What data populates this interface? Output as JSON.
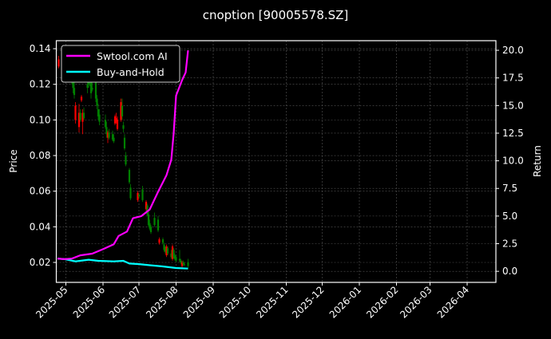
{
  "chart_data": {
    "type": "candlestick+line",
    "title": "cnoption [90005578.SZ]",
    "ylabel_left": "Price",
    "ylabel_right": "Return",
    "xlim": [
      "2025-04-23",
      "2026-04-25"
    ],
    "ylim_left": [
      0.0088,
      0.1445
    ],
    "ylim_right": [
      -1.0,
      20.87
    ],
    "x_ticks": [
      "2025-05",
      "2025-06",
      "2025-07",
      "2025-08",
      "2025-09",
      "2025-10",
      "2025-11",
      "2025-12",
      "2026-01",
      "2026-02",
      "2026-03",
      "2026-04"
    ],
    "x_tick_dates": [
      "2025-05-01",
      "2025-06-01",
      "2025-07-01",
      "2025-08-01",
      "2025-09-01",
      "2025-10-01",
      "2025-11-01",
      "2025-12-01",
      "2026-01-01",
      "2026-02-01",
      "2026-03-01",
      "2026-04-01"
    ],
    "y_ticks_left": [
      "0.02",
      "0.04",
      "0.06",
      "0.08",
      "0.10",
      "0.12",
      "0.14"
    ],
    "y_ticks_right": [
      "0.0",
      "2.5",
      "5.0",
      "7.5",
      "10.0",
      "12.5",
      "15.0",
      "17.5",
      "20.0"
    ],
    "grid": true,
    "legend_position": "top-left",
    "colors": {
      "up": "#ff0000",
      "down": "#008000",
      "strategy": "#ff00ff",
      "buy_hold": "#00ffff",
      "background": "#000000"
    },
    "candles_columns": [
      "date",
      "open",
      "high",
      "low",
      "close"
    ],
    "candles": [
      [
        "2025-04-25",
        0.13,
        0.136,
        0.129,
        0.134
      ],
      [
        "2025-04-28",
        0.134,
        0.14,
        0.132,
        0.138
      ],
      [
        "2025-04-29",
        0.138,
        0.141,
        0.133,
        0.135
      ],
      [
        "2025-04-30",
        0.135,
        0.137,
        0.128,
        0.13
      ],
      [
        "2025-05-06",
        0.13,
        0.132,
        0.12,
        0.122
      ],
      [
        "2025-05-07",
        0.122,
        0.124,
        0.115,
        0.118
      ],
      [
        "2025-05-08",
        0.118,
        0.121,
        0.112,
        0.114
      ],
      [
        "2025-05-09",
        0.1,
        0.11,
        0.098,
        0.108
      ],
      [
        "2025-05-12",
        0.096,
        0.109,
        0.093,
        0.104
      ],
      [
        "2025-05-13",
        0.104,
        0.106,
        0.099,
        0.1
      ],
      [
        "2025-05-14",
        0.111,
        0.114,
        0.11,
        0.113
      ],
      [
        "2025-05-15",
        0.099,
        0.106,
        0.092,
        0.104
      ],
      [
        "2025-05-16",
        0.104,
        0.107,
        0.1,
        0.101
      ],
      [
        "2025-05-19",
        0.12,
        0.125,
        0.115,
        0.118
      ],
      [
        "2025-05-20",
        0.125,
        0.128,
        0.118,
        0.12
      ],
      [
        "2025-05-21",
        0.122,
        0.13,
        0.119,
        0.121
      ],
      [
        "2025-05-22",
        0.121,
        0.124,
        0.112,
        0.115
      ],
      [
        "2025-05-23",
        0.118,
        0.122,
        0.116,
        0.117
      ],
      [
        "2025-05-26",
        0.125,
        0.132,
        0.11,
        0.112
      ],
      [
        "2025-05-27",
        0.112,
        0.114,
        0.106,
        0.108
      ],
      [
        "2025-05-28",
        0.106,
        0.109,
        0.1,
        0.102
      ],
      [
        "2025-05-29",
        0.103,
        0.106,
        0.097,
        0.099
      ],
      [
        "2025-06-03",
        0.1,
        0.103,
        0.095,
        0.096
      ],
      [
        "2025-06-04",
        0.096,
        0.099,
        0.09,
        0.092
      ],
      [
        "2025-06-05",
        0.09,
        0.094,
        0.087,
        0.093
      ],
      [
        "2025-06-06",
        0.093,
        0.095,
        0.089,
        0.09
      ],
      [
        "2025-06-09",
        0.092,
        0.094,
        0.088,
        0.089
      ],
      [
        "2025-06-10",
        0.09,
        0.092,
        0.087,
        0.088
      ],
      [
        "2025-06-11",
        0.098,
        0.103,
        0.097,
        0.102
      ],
      [
        "2025-06-12",
        0.099,
        0.104,
        0.098,
        0.101
      ],
      [
        "2025-06-13",
        0.095,
        0.102,
        0.094,
        0.1
      ],
      [
        "2025-06-16",
        0.1,
        0.112,
        0.099,
        0.11
      ],
      [
        "2025-06-17",
        0.108,
        0.112,
        0.1,
        0.102
      ],
      [
        "2025-06-18",
        0.097,
        0.099,
        0.093,
        0.095
      ],
      [
        "2025-06-19",
        0.09,
        0.092,
        0.083,
        0.084
      ],
      [
        "2025-06-20",
        0.08,
        0.082,
        0.074,
        0.075
      ],
      [
        "2025-06-23",
        0.072,
        0.073,
        0.064,
        0.065
      ],
      [
        "2025-06-24",
        0.062,
        0.064,
        0.055,
        0.056
      ],
      [
        "2025-06-30",
        0.055,
        0.06,
        0.054,
        0.059
      ],
      [
        "2025-07-01",
        0.058,
        0.059,
        0.056,
        0.057
      ],
      [
        "2025-07-04",
        0.061,
        0.063,
        0.054,
        0.055
      ],
      [
        "2025-07-07",
        0.05,
        0.055,
        0.049,
        0.054
      ],
      [
        "2025-07-08",
        0.052,
        0.053,
        0.046,
        0.047
      ],
      [
        "2025-07-09",
        0.047,
        0.049,
        0.04,
        0.041
      ],
      [
        "2025-07-10",
        0.042,
        0.044,
        0.038,
        0.039
      ],
      [
        "2025-07-11",
        0.04,
        0.041,
        0.036,
        0.037
      ],
      [
        "2025-07-14",
        0.045,
        0.048,
        0.04,
        0.041
      ],
      [
        "2025-07-17",
        0.044,
        0.046,
        0.037,
        0.038
      ],
      [
        "2025-07-18",
        0.031,
        0.034,
        0.03,
        0.033
      ],
      [
        "2025-07-21",
        0.033,
        0.034,
        0.03,
        0.031
      ],
      [
        "2025-07-22",
        0.03,
        0.031,
        0.026,
        0.027
      ],
      [
        "2025-07-23",
        0.028,
        0.029,
        0.025,
        0.026
      ],
      [
        "2025-07-24",
        0.024,
        0.03,
        0.023,
        0.029
      ],
      [
        "2025-07-25",
        0.028,
        0.029,
        0.024,
        0.025
      ],
      [
        "2025-07-28",
        0.025,
        0.027,
        0.022,
        0.023
      ],
      [
        "2025-07-29",
        0.022,
        0.03,
        0.021,
        0.029
      ],
      [
        "2025-07-30",
        0.027,
        0.028,
        0.022,
        0.023
      ],
      [
        "2025-07-31",
        0.024,
        0.025,
        0.021,
        0.022
      ],
      [
        "2025-08-01",
        0.023,
        0.024,
        0.02,
        0.021
      ],
      [
        "2025-08-04",
        0.022,
        0.027,
        0.02,
        0.021
      ],
      [
        "2025-08-05",
        0.021,
        0.022,
        0.019,
        0.02
      ],
      [
        "2025-08-06",
        0.018,
        0.021,
        0.017,
        0.02
      ],
      [
        "2025-08-07",
        0.02,
        0.021,
        0.018,
        0.019
      ],
      [
        "2025-08-08",
        0.019,
        0.02,
        0.018,
        0.0185
      ],
      [
        "2025-08-11",
        0.02,
        0.022,
        0.017,
        0.018
      ]
    ],
    "series": [
      {
        "name": "Swtool.com AI",
        "axis": "right",
        "points": [
          [
            "2025-04-24",
            1.15
          ],
          [
            "2025-04-30",
            1.1
          ],
          [
            "2025-05-06",
            1.15
          ],
          [
            "2025-05-13",
            1.45
          ],
          [
            "2025-05-23",
            1.6
          ],
          [
            "2025-06-01",
            2.0
          ],
          [
            "2025-06-10",
            2.45
          ],
          [
            "2025-06-14",
            3.2
          ],
          [
            "2025-06-21",
            3.6
          ],
          [
            "2025-06-26",
            4.8
          ],
          [
            "2025-07-03",
            5.0
          ],
          [
            "2025-07-10",
            5.6
          ],
          [
            "2025-07-17",
            7.2
          ],
          [
            "2025-07-24",
            8.7
          ],
          [
            "2025-07-28",
            10.1
          ],
          [
            "2025-07-30",
            12.5
          ],
          [
            "2025-08-01",
            15.9
          ],
          [
            "2025-08-06",
            17.3
          ],
          [
            "2025-08-09",
            18.0
          ],
          [
            "2025-08-11",
            20.0
          ]
        ]
      },
      {
        "name": "Buy-and-Hold",
        "axis": "right",
        "points": [
          [
            "2025-04-24",
            1.15
          ],
          [
            "2025-04-30",
            1.1
          ],
          [
            "2025-05-09",
            0.9
          ],
          [
            "2025-05-20",
            1.05
          ],
          [
            "2025-05-28",
            0.95
          ],
          [
            "2025-06-10",
            0.9
          ],
          [
            "2025-06-18",
            0.95
          ],
          [
            "2025-06-23",
            0.7
          ],
          [
            "2025-07-01",
            0.65
          ],
          [
            "2025-07-10",
            0.55
          ],
          [
            "2025-07-20",
            0.45
          ],
          [
            "2025-08-01",
            0.3
          ],
          [
            "2025-08-11",
            0.25
          ]
        ]
      }
    ]
  }
}
